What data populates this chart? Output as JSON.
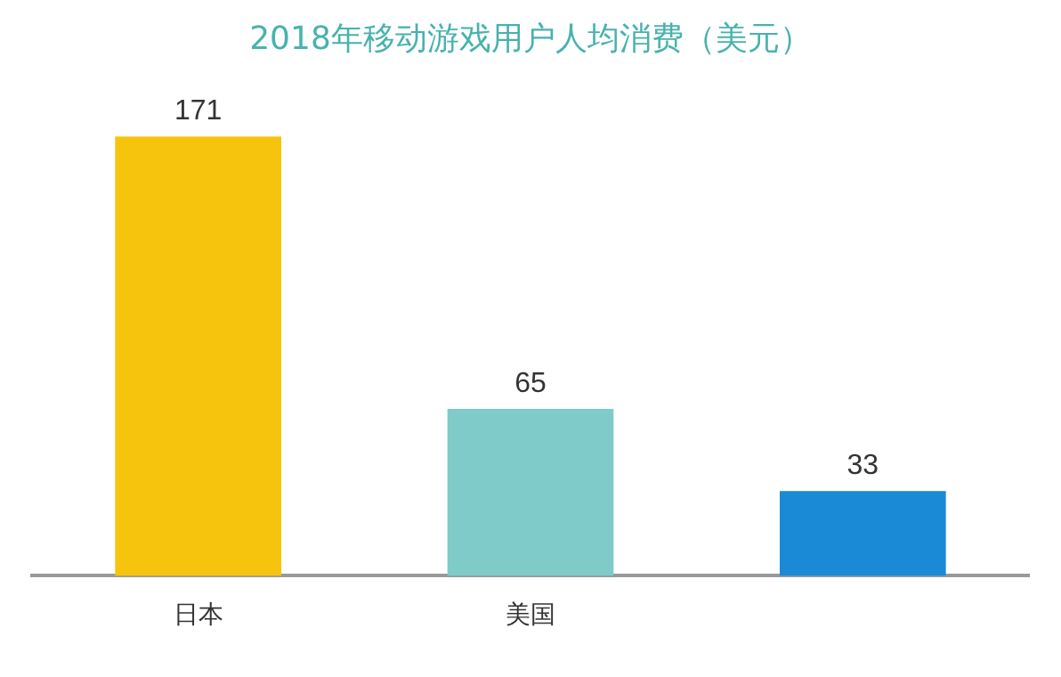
{
  "chart_data": {
    "type": "bar",
    "title": "2018年移动游戏用户人均消费（美元）",
    "categories": [
      "日本",
      "美国",
      null
    ],
    "values": [
      171,
      65,
      33
    ],
    "colors": [
      "#f6c40c",
      "#7fcbc9",
      "#1b8ad6"
    ],
    "data_labels": true,
    "grid": false,
    "legend": false,
    "tick_labels": "x"
  }
}
